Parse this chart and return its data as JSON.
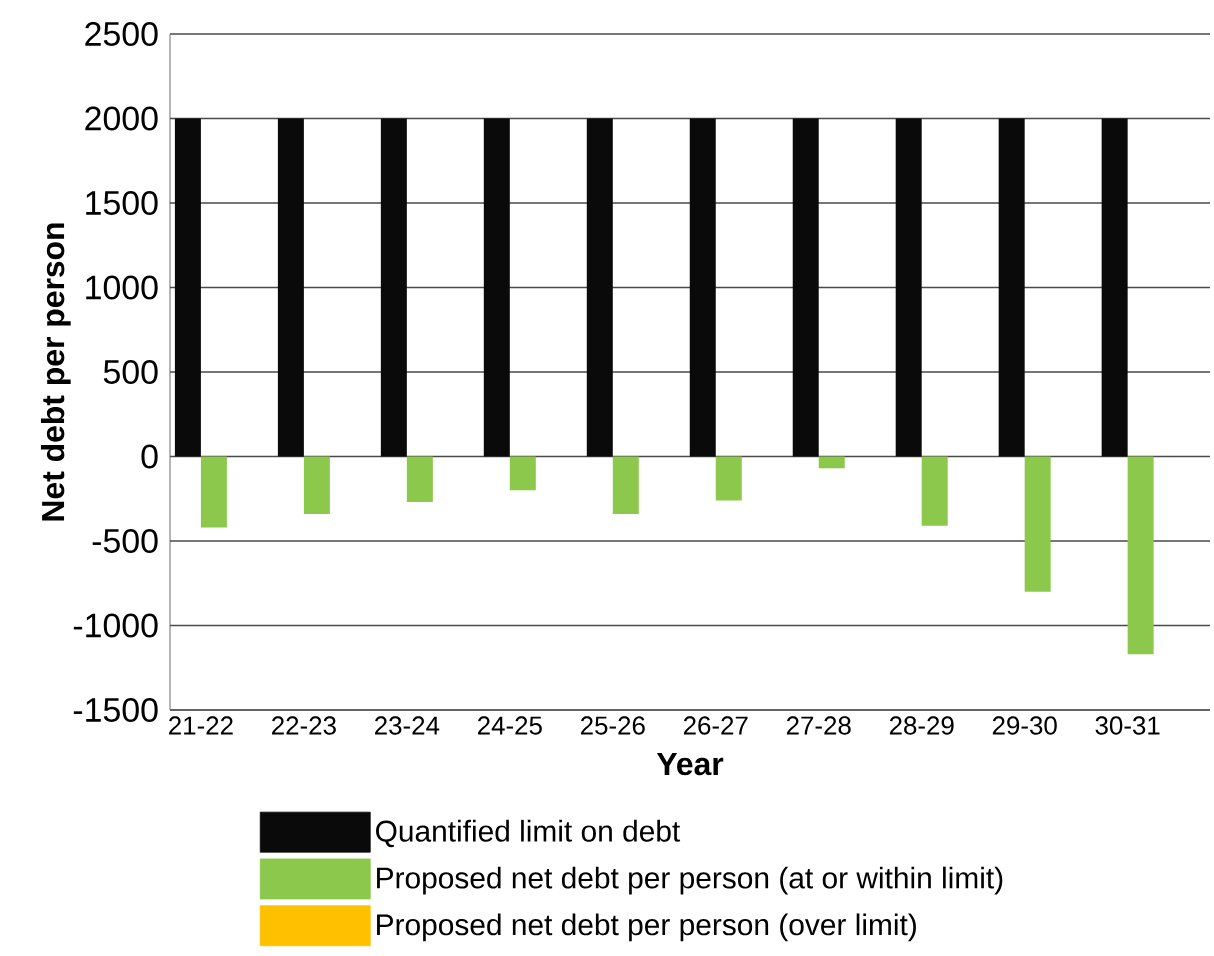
{
  "chart_data": {
    "type": "bar",
    "xlabel": "Year",
    "ylabel": "Net debt per person",
    "categories": [
      "21-22",
      "22-23",
      "23-24",
      "24-25",
      "25-26",
      "26-27",
      "27-28",
      "28-29",
      "29-30",
      "30-31"
    ],
    "series": [
      {
        "name": "Quantified limit on debt",
        "color": "#0a0a0a",
        "values": [
          2000,
          2000,
          2000,
          2000,
          2000,
          2000,
          2000,
          2000,
          2000,
          2000
        ]
      },
      {
        "name": "Proposed net debt per person (at or within limit)",
        "color": "#8cc84b",
        "values": [
          -420,
          -340,
          -270,
          -200,
          -340,
          -260,
          -70,
          -410,
          -800,
          -1170
        ]
      },
      {
        "name": "Proposed net debt per person (over limit)",
        "color": "#ffc000",
        "values": [
          null,
          null,
          null,
          null,
          null,
          null,
          null,
          null,
          null,
          null
        ]
      }
    ],
    "ylim": [
      -1500,
      2500
    ],
    "yticks": [
      -1500,
      -1000,
      -500,
      0,
      500,
      1000,
      1500,
      2000,
      2500
    ],
    "grid": "y",
    "legend": "bottom"
  }
}
